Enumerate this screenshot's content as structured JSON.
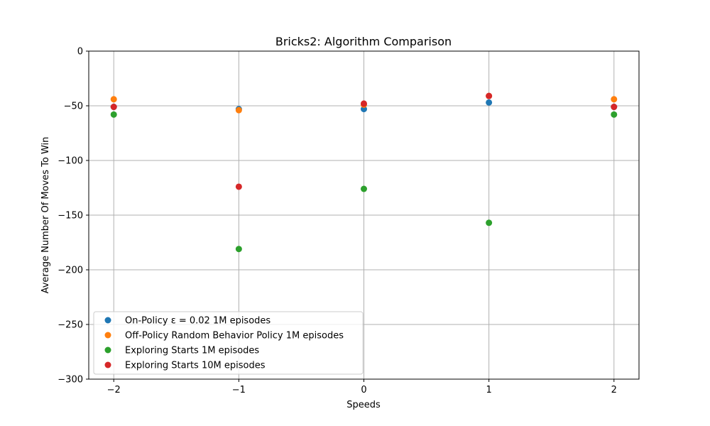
{
  "chart_data": {
    "type": "scatter",
    "title": "Bricks2: Algorithm Comparison",
    "xlabel": "Speeds",
    "ylabel": "Average Number Of Moves To Win",
    "xlim": [
      -2.2,
      2.2
    ],
    "ylim": [
      -300,
      0
    ],
    "x_ticks": [
      -2,
      -1,
      0,
      1,
      2
    ],
    "x_tick_labels": [
      "−2",
      "−1",
      "0",
      "1",
      "2"
    ],
    "y_ticks": [
      0,
      -50,
      -100,
      -150,
      -200,
      -250,
      -300
    ],
    "y_tick_labels": [
      "0",
      "−50",
      "−100",
      "−150",
      "−200",
      "−250",
      "−300"
    ],
    "grid": true,
    "legend_position": "lower-left",
    "series": [
      {
        "name": "On-Policy ε = 0.02 1M episodes",
        "color": "#1f77b4",
        "points": [
          [
            -2,
            -51
          ],
          [
            -1,
            -53
          ],
          [
            0,
            -53
          ],
          [
            1,
            -47
          ],
          [
            2,
            -51
          ]
        ]
      },
      {
        "name": "Off-Policy Random Behavior Policy 1M episodes",
        "color": "#ff7f0e",
        "points": [
          [
            -2,
            -44
          ],
          [
            -1,
            -54
          ],
          [
            0,
            -49
          ],
          [
            1,
            -41
          ],
          [
            2,
            -44
          ]
        ]
      },
      {
        "name": "Exploring Starts 1M episodes",
        "color": "#2ca02c",
        "points": [
          [
            -2,
            -58
          ],
          [
            -1,
            -181
          ],
          [
            0,
            -126
          ],
          [
            1,
            -157
          ],
          [
            2,
            -58
          ]
        ]
      },
      {
        "name": "Exploring Starts 10M episodes",
        "color": "#d62728",
        "points": [
          [
            -2,
            -51
          ],
          [
            -1,
            -124
          ],
          [
            0,
            -48
          ],
          [
            1,
            -41
          ],
          [
            2,
            -51
          ]
        ]
      }
    ]
  }
}
